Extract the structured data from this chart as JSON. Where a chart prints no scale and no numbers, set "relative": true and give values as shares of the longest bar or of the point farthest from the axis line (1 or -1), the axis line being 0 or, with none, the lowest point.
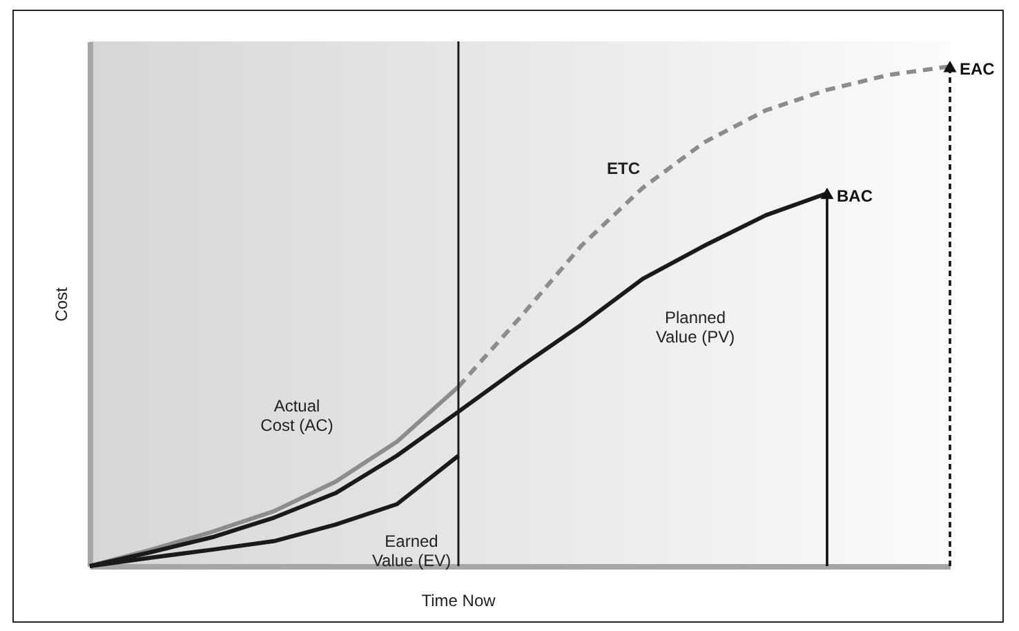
{
  "chart_data": {
    "type": "line",
    "relative": true,
    "ylabel": "Cost",
    "marker": "none",
    "categories": [
      null,
      null,
      null,
      null,
      null,
      null,
      null,
      null,
      null,
      null,
      null,
      null,
      null,
      null,
      null
    ],
    "series": [
      {
        "name": "Actual Cost (AC)",
        "color": "#8c8c8c",
        "line_style": "solid",
        "values": [
          0,
          0.033,
          0.069,
          0.11,
          0.169,
          0.249,
          0.359,
          null,
          null,
          null,
          null,
          null,
          null,
          null,
          null
        ]
      },
      {
        "name": "Planned Value (PV)",
        "color": "#1a1a1a",
        "line_style": "solid",
        "values": [
          0,
          0.028,
          0.058,
          0.097,
          0.146,
          0.221,
          0.309,
          0.398,
          0.483,
          0.575,
          0.641,
          0.702,
          0.746,
          null,
          null
        ]
      },
      {
        "name": "Earned Value (EV)",
        "color": "#1a1a1a",
        "line_style": "solid",
        "values": [
          0,
          0.017,
          0.033,
          0.05,
          0.083,
          0.124,
          0.221,
          null,
          null,
          null,
          null,
          null,
          null,
          null,
          null
        ]
      },
      {
        "name": "ETC",
        "color": "#8c8c8c",
        "line_style": "dashed",
        "values": [
          null,
          null,
          null,
          null,
          null,
          null,
          0.359,
          0.497,
          0.641,
          0.757,
          0.848,
          0.912,
          0.953,
          0.983,
          1
        ]
      }
    ],
    "annotations": [
      "Time Now",
      "BAC",
      "EAC"
    ]
  }
}
